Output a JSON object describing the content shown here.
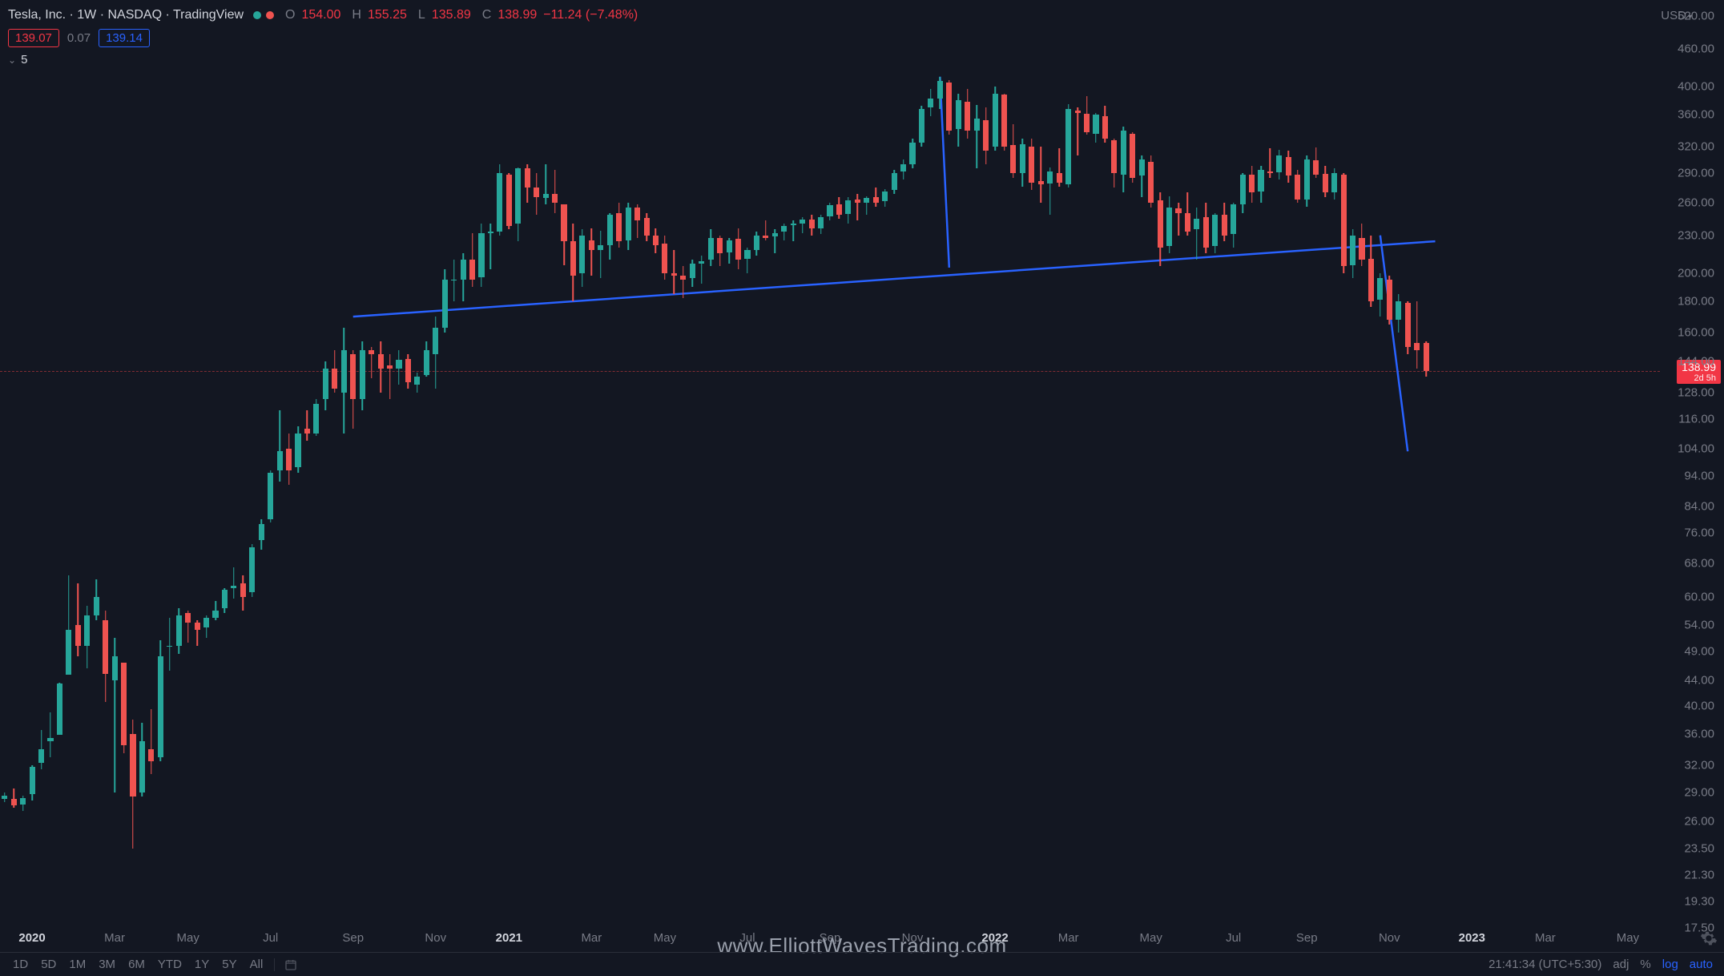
{
  "header": {
    "symbol_title": "Tesla, Inc. · 1W · NASDAQ · TradingView",
    "ohlc": {
      "O_lbl": "O",
      "O": "154.00",
      "H_lbl": "H",
      "H": "155.25",
      "L_lbl": "L",
      "L": "135.89",
      "C_lbl": "C",
      "C": "138.99",
      "chg": "−11.24 (−7.48%)"
    },
    "currency": "USD"
  },
  "row2": {
    "left_pill": "139.07",
    "mid": "0.07",
    "right_pill": "139.14"
  },
  "row3": {
    "indicator": "5"
  },
  "chart": {
    "type": "candlestick",
    "colors": {
      "up": "#26a69a",
      "down": "#ef5350",
      "bg": "#131722",
      "grid": "#2a2e39",
      "text": "#787b86",
      "trend": "#2962ff",
      "hline": "#802c33"
    },
    "y_scale": "log",
    "y_ticks": [
      520,
      460,
      400,
      360,
      320,
      290,
      260,
      230,
      200,
      180,
      160,
      144,
      128,
      116,
      104,
      94,
      84,
      76,
      68,
      60,
      54,
      49,
      44,
      40,
      36,
      32,
      29,
      26,
      23.5,
      21.3,
      19.3,
      17.5
    ],
    "y_tick_labels": [
      "520.00",
      "460.00",
      "400.00",
      "360.00",
      "320.00",
      "290.00",
      "260.00",
      "230.00",
      "200.00",
      "180.00",
      "160.00",
      "144.00",
      "128.00",
      "116.00",
      "104.00",
      "94.00",
      "84.00",
      "76.00",
      "68.00",
      "60.00",
      "54.00",
      "49.00",
      "44.00",
      "40.00",
      "36.00",
      "32.00",
      "29.00",
      "26.00",
      "23.50",
      "21.30",
      "19.30",
      "17.50"
    ],
    "price_tag": {
      "price": "138.99",
      "sub": "2d 5h"
    },
    "last_price_line": 138.99,
    "x_ticks": [
      {
        "i": 3,
        "label": "2020",
        "bold": true
      },
      {
        "i": 12,
        "label": "Mar"
      },
      {
        "i": 20,
        "label": "May"
      },
      {
        "i": 29,
        "label": "Jul"
      },
      {
        "i": 38,
        "label": "Sep"
      },
      {
        "i": 47,
        "label": "Nov"
      },
      {
        "i": 55,
        "label": "2021",
        "bold": true
      },
      {
        "i": 64,
        "label": "Mar"
      },
      {
        "i": 72,
        "label": "May"
      },
      {
        "i": 81,
        "label": "Jul"
      },
      {
        "i": 90,
        "label": "Sep"
      },
      {
        "i": 99,
        "label": "Nov"
      },
      {
        "i": 108,
        "label": "2022",
        "bold": true
      },
      {
        "i": 116,
        "label": "Mar"
      },
      {
        "i": 125,
        "label": "May"
      },
      {
        "i": 134,
        "label": "Jul"
      },
      {
        "i": 142,
        "label": "Sep"
      },
      {
        "i": 151,
        "label": "Nov"
      },
      {
        "i": 160,
        "label": "2023",
        "bold": true
      },
      {
        "i": 168,
        "label": "Mar"
      },
      {
        "i": 177,
        "label": "May"
      }
    ],
    "n_slots": 181,
    "candle_width_ratio": 0.62,
    "trend_lines": [
      {
        "x1_i": 38,
        "y1": 170,
        "x2_i": 156,
        "y2": 225
      },
      {
        "x1_i": 102,
        "y1": 415,
        "x2_i": 103,
        "y2": 204
      },
      {
        "x1_i": 150,
        "y1": 230,
        "x2_i": 153,
        "y2": 103
      }
    ],
    "candles": [
      {
        "o": 28.3,
        "h": 29.0,
        "l": 27.9,
        "c": 28.6
      },
      {
        "o": 28.3,
        "h": 29.4,
        "l": 27.4,
        "c": 27.6
      },
      {
        "o": 27.7,
        "h": 28.6,
        "l": 27.0,
        "c": 28.4
      },
      {
        "o": 28.8,
        "h": 32.0,
        "l": 28.1,
        "c": 31.9
      },
      {
        "o": 32.3,
        "h": 36.5,
        "l": 31.6,
        "c": 34.0
      },
      {
        "o": 35.0,
        "h": 39.0,
        "l": 33.0,
        "c": 35.5
      },
      {
        "o": 35.9,
        "h": 43.5,
        "l": 35.9,
        "c": 43.4
      },
      {
        "o": 44.9,
        "h": 65.0,
        "l": 44.9,
        "c": 53.0
      },
      {
        "o": 54.0,
        "h": 63.0,
        "l": 48.0,
        "c": 50.0
      },
      {
        "o": 50.0,
        "h": 58.0,
        "l": 46.0,
        "c": 56.0
      },
      {
        "o": 56.0,
        "h": 64.0,
        "l": 55.0,
        "c": 60.0
      },
      {
        "o": 55.0,
        "h": 57.0,
        "l": 40.5,
        "c": 45.0
      },
      {
        "o": 44.0,
        "h": 51.5,
        "l": 29.0,
        "c": 48.0
      },
      {
        "o": 47.0,
        "h": 47.0,
        "l": 33.5,
        "c": 34.5
      },
      {
        "o": 36.0,
        "h": 38.0,
        "l": 23.5,
        "c": 28.5
      },
      {
        "o": 29.0,
        "h": 37.5,
        "l": 28.5,
        "c": 35.0
      },
      {
        "o": 34.0,
        "h": 39.5,
        "l": 31.0,
        "c": 32.5
      },
      {
        "o": 33.0,
        "h": 51.0,
        "l": 32.5,
        "c": 48.0
      },
      {
        "o": 50.0,
        "h": 55.5,
        "l": 45.5,
        "c": 50.0
      },
      {
        "o": 50.0,
        "h": 57.5,
        "l": 48.5,
        "c": 56.0
      },
      {
        "o": 56.5,
        "h": 57.0,
        "l": 50.5,
        "c": 54.5
      },
      {
        "o": 54.5,
        "h": 55.0,
        "l": 50.0,
        "c": 53.0
      },
      {
        "o": 53.5,
        "h": 56.0,
        "l": 51.5,
        "c": 55.5
      },
      {
        "o": 55.5,
        "h": 59.0,
        "l": 55.0,
        "c": 57.0
      },
      {
        "o": 57.5,
        "h": 62.0,
        "l": 56.5,
        "c": 61.5
      },
      {
        "o": 62.0,
        "h": 67.0,
        "l": 59.5,
        "c": 62.5
      },
      {
        "o": 63.0,
        "h": 65.0,
        "l": 57.0,
        "c": 60.0
      },
      {
        "o": 61.0,
        "h": 73.0,
        "l": 60.0,
        "c": 72.0
      },
      {
        "o": 74.0,
        "h": 80.0,
        "l": 71.5,
        "c": 78.5
      },
      {
        "o": 80.0,
        "h": 96.0,
        "l": 79.0,
        "c": 95.0
      },
      {
        "o": 96.0,
        "h": 120.0,
        "l": 92.0,
        "c": 103.0
      },
      {
        "o": 104.0,
        "h": 110.0,
        "l": 91.0,
        "c": 96.0
      },
      {
        "o": 97.0,
        "h": 113.0,
        "l": 95.0,
        "c": 110.0
      },
      {
        "o": 112.0,
        "h": 120.0,
        "l": 107.0,
        "c": 110.0
      },
      {
        "o": 110.0,
        "h": 125.0,
        "l": 109.0,
        "c": 123.0
      },
      {
        "o": 125.0,
        "h": 144.0,
        "l": 120.0,
        "c": 140.0
      },
      {
        "o": 140.0,
        "h": 150.0,
        "l": 128.0,
        "c": 130.0
      },
      {
        "o": 128.0,
        "h": 163.0,
        "l": 110.0,
        "c": 150.0
      },
      {
        "o": 148.0,
        "h": 150.0,
        "l": 112.0,
        "c": 125.0
      },
      {
        "o": 125.0,
        "h": 155.0,
        "l": 120.0,
        "c": 150.0
      },
      {
        "o": 150.0,
        "h": 152.0,
        "l": 135.0,
        "c": 148.0
      },
      {
        "o": 148.0,
        "h": 155.0,
        "l": 128.0,
        "c": 140.0
      },
      {
        "o": 142.0,
        "h": 148.0,
        "l": 125.0,
        "c": 140.0
      },
      {
        "o": 140.0,
        "h": 150.0,
        "l": 132.0,
        "c": 145.0
      },
      {
        "o": 145.0,
        "h": 148.0,
        "l": 130.0,
        "c": 133.0
      },
      {
        "o": 132.0,
        "h": 138.0,
        "l": 128.0,
        "c": 136.0
      },
      {
        "o": 137.0,
        "h": 155.0,
        "l": 136.0,
        "c": 150.0
      },
      {
        "o": 148.0,
        "h": 170.0,
        "l": 130.0,
        "c": 163.0
      },
      {
        "o": 163.0,
        "h": 203.0,
        "l": 160.0,
        "c": 195.0
      },
      {
        "o": 195.0,
        "h": 210.0,
        "l": 180.0,
        "c": 195.0
      },
      {
        "o": 195.0,
        "h": 215.0,
        "l": 180.0,
        "c": 210.0
      },
      {
        "o": 210.0,
        "h": 232.0,
        "l": 190.0,
        "c": 195.0
      },
      {
        "o": 197.0,
        "h": 240.0,
        "l": 190.0,
        "c": 232.0
      },
      {
        "o": 232.0,
        "h": 240.0,
        "l": 203.0,
        "c": 233.0
      },
      {
        "o": 233.0,
        "h": 300.0,
        "l": 230.0,
        "c": 290.0
      },
      {
        "o": 288.0,
        "h": 290.0,
        "l": 235.0,
        "c": 238.0
      },
      {
        "o": 240.0,
        "h": 296.0,
        "l": 225.0,
        "c": 295.0
      },
      {
        "o": 295.0,
        "h": 300.0,
        "l": 260.0,
        "c": 275.0
      },
      {
        "o": 275.0,
        "h": 290.0,
        "l": 248.0,
        "c": 265.0
      },
      {
        "o": 264.0,
        "h": 300.0,
        "l": 258.0,
        "c": 268.0
      },
      {
        "o": 268.0,
        "h": 293.0,
        "l": 250.0,
        "c": 260.0
      },
      {
        "o": 258.0,
        "h": 258.0,
        "l": 206.0,
        "c": 225.0
      },
      {
        "o": 225.0,
        "h": 240.0,
        "l": 180.0,
        "c": 198.0
      },
      {
        "o": 200.0,
        "h": 235.0,
        "l": 190.0,
        "c": 230.0
      },
      {
        "o": 226.0,
        "h": 236.0,
        "l": 198.0,
        "c": 218.0
      },
      {
        "o": 218.0,
        "h": 234.0,
        "l": 196.0,
        "c": 222.0
      },
      {
        "o": 222.0,
        "h": 250.0,
        "l": 210.0,
        "c": 248.0
      },
      {
        "o": 250.0,
        "h": 260.0,
        "l": 220.0,
        "c": 225.0
      },
      {
        "o": 226.0,
        "h": 260.0,
        "l": 218.0,
        "c": 255.0
      },
      {
        "o": 255.0,
        "h": 258.0,
        "l": 228.0,
        "c": 243.0
      },
      {
        "o": 245.0,
        "h": 250.0,
        "l": 225.0,
        "c": 230.0
      },
      {
        "o": 230.0,
        "h": 236.0,
        "l": 215.0,
        "c": 222.0
      },
      {
        "o": 223.0,
        "h": 230.0,
        "l": 195.0,
        "c": 200.0
      },
      {
        "o": 200.0,
        "h": 218.0,
        "l": 185.0,
        "c": 198.0
      },
      {
        "o": 198.0,
        "h": 205.0,
        "l": 182.0,
        "c": 195.0
      },
      {
        "o": 196.0,
        "h": 210.0,
        "l": 190.0,
        "c": 207.0
      },
      {
        "o": 207.0,
        "h": 213.0,
        "l": 192.0,
        "c": 209.0
      },
      {
        "o": 210.0,
        "h": 235.0,
        "l": 205.0,
        "c": 228.0
      },
      {
        "o": 228.0,
        "h": 230.0,
        "l": 205.0,
        "c": 215.0
      },
      {
        "o": 216.0,
        "h": 228.0,
        "l": 207.0,
        "c": 226.0
      },
      {
        "o": 227.0,
        "h": 236.0,
        "l": 203.0,
        "c": 210.0
      },
      {
        "o": 211.0,
        "h": 220.0,
        "l": 200.0,
        "c": 218.0
      },
      {
        "o": 218.0,
        "h": 233.0,
        "l": 213.0,
        "c": 230.0
      },
      {
        "o": 230.0,
        "h": 243.0,
        "l": 226.0,
        "c": 228.0
      },
      {
        "o": 229.0,
        "h": 235.0,
        "l": 215.0,
        "c": 232.0
      },
      {
        "o": 233.0,
        "h": 240.0,
        "l": 226.0,
        "c": 238.0
      },
      {
        "o": 239.0,
        "h": 243.0,
        "l": 225.0,
        "c": 240.0
      },
      {
        "o": 240.0,
        "h": 246.0,
        "l": 232.0,
        "c": 244.0
      },
      {
        "o": 244.0,
        "h": 248.0,
        "l": 230.0,
        "c": 236.0
      },
      {
        "o": 236.0,
        "h": 248.0,
        "l": 231.0,
        "c": 246.0
      },
      {
        "o": 247.0,
        "h": 260.0,
        "l": 243.0,
        "c": 257.0
      },
      {
        "o": 258.0,
        "h": 265.0,
        "l": 245.0,
        "c": 248.0
      },
      {
        "o": 249.0,
        "h": 265.0,
        "l": 240.0,
        "c": 262.0
      },
      {
        "o": 263.0,
        "h": 268.0,
        "l": 243.0,
        "c": 260.0
      },
      {
        "o": 260.0,
        "h": 266.0,
        "l": 248.0,
        "c": 264.0
      },
      {
        "o": 265.0,
        "h": 275.0,
        "l": 256.0,
        "c": 260.0
      },
      {
        "o": 261.0,
        "h": 273.0,
        "l": 256.0,
        "c": 271.0
      },
      {
        "o": 272.0,
        "h": 293.0,
        "l": 268.0,
        "c": 290.0
      },
      {
        "o": 292.0,
        "h": 305.0,
        "l": 283.0,
        "c": 300.0
      },
      {
        "o": 300.0,
        "h": 330.0,
        "l": 295.0,
        "c": 325.0
      },
      {
        "o": 325.0,
        "h": 372.0,
        "l": 320.0,
        "c": 368.0
      },
      {
        "o": 370.0,
        "h": 396.0,
        "l": 358.0,
        "c": 382.0
      },
      {
        "o": 383.0,
        "h": 415.0,
        "l": 368.0,
        "c": 408.0
      },
      {
        "o": 406.0,
        "h": 410.0,
        "l": 335.0,
        "c": 340.0
      },
      {
        "o": 342.0,
        "h": 390.0,
        "l": 320.0,
        "c": 380.0
      },
      {
        "o": 378.0,
        "h": 396.0,
        "l": 330.0,
        "c": 340.0
      },
      {
        "o": 340.0,
        "h": 373.0,
        "l": 295.0,
        "c": 355.0
      },
      {
        "o": 353.0,
        "h": 370.0,
        "l": 300.0,
        "c": 315.0
      },
      {
        "o": 320.0,
        "h": 400.0,
        "l": 315.0,
        "c": 390.0
      },
      {
        "o": 388.0,
        "h": 390.0,
        "l": 315.0,
        "c": 320.0
      },
      {
        "o": 322.0,
        "h": 348.0,
        "l": 285.0,
        "c": 290.0
      },
      {
        "o": 290.0,
        "h": 330.0,
        "l": 276.0,
        "c": 323.0
      },
      {
        "o": 320.0,
        "h": 330.0,
        "l": 272.0,
        "c": 280.0
      },
      {
        "o": 281.0,
        "h": 320.0,
        "l": 260.0,
        "c": 278.0
      },
      {
        "o": 279.0,
        "h": 296.0,
        "l": 248.0,
        "c": 292.0
      },
      {
        "o": 290.0,
        "h": 318.0,
        "l": 276.0,
        "c": 280.0
      },
      {
        "o": 278.0,
        "h": 375.0,
        "l": 275.0,
        "c": 368.0
      },
      {
        "o": 366.0,
        "h": 370.0,
        "l": 310.0,
        "c": 363.0
      },
      {
        "o": 362.0,
        "h": 386.0,
        "l": 335.0,
        "c": 338.0
      },
      {
        "o": 336.0,
        "h": 363.0,
        "l": 325.0,
        "c": 360.0
      },
      {
        "o": 358.0,
        "h": 372.0,
        "l": 325.0,
        "c": 330.0
      },
      {
        "o": 328.0,
        "h": 330.0,
        "l": 275.0,
        "c": 290.0
      },
      {
        "o": 288.0,
        "h": 345.0,
        "l": 270.0,
        "c": 340.0
      },
      {
        "o": 336.0,
        "h": 338.0,
        "l": 280.0,
        "c": 285.0
      },
      {
        "o": 287.0,
        "h": 310.0,
        "l": 265.0,
        "c": 305.0
      },
      {
        "o": 302.0,
        "h": 310.0,
        "l": 255.0,
        "c": 260.0
      },
      {
        "o": 262.0,
        "h": 270.0,
        "l": 205.0,
        "c": 220.0
      },
      {
        "o": 221.0,
        "h": 266.0,
        "l": 215.0,
        "c": 255.0
      },
      {
        "o": 254.0,
        "h": 260.0,
        "l": 230.0,
        "c": 250.0
      },
      {
        "o": 250.0,
        "h": 270.0,
        "l": 230.0,
        "c": 233.0
      },
      {
        "o": 235.0,
        "h": 255.0,
        "l": 210.0,
        "c": 245.0
      },
      {
        "o": 246.0,
        "h": 260.0,
        "l": 215.0,
        "c": 220.0
      },
      {
        "o": 221.0,
        "h": 250.0,
        "l": 215.0,
        "c": 248.0
      },
      {
        "o": 248.0,
        "h": 260.0,
        "l": 225.0,
        "c": 230.0
      },
      {
        "o": 231.0,
        "h": 260.0,
        "l": 220.0,
        "c": 258.0
      },
      {
        "o": 258.0,
        "h": 290.0,
        "l": 250.0,
        "c": 288.0
      },
      {
        "o": 288.0,
        "h": 298.0,
        "l": 260.0,
        "c": 270.0
      },
      {
        "o": 271.0,
        "h": 298.0,
        "l": 260.0,
        "c": 293.0
      },
      {
        "o": 292.0,
        "h": 318.0,
        "l": 285.0,
        "c": 290.0
      },
      {
        "o": 291.0,
        "h": 316.0,
        "l": 283.0,
        "c": 310.0
      },
      {
        "o": 308.0,
        "h": 315.0,
        "l": 280.0,
        "c": 287.0
      },
      {
        "o": 288.0,
        "h": 293.0,
        "l": 260.0,
        "c": 263.0
      },
      {
        "o": 263.0,
        "h": 310.0,
        "l": 256.0,
        "c": 305.0
      },
      {
        "o": 304.0,
        "h": 319.0,
        "l": 285.0,
        "c": 288.0
      },
      {
        "o": 289.0,
        "h": 298.0,
        "l": 265.0,
        "c": 270.0
      },
      {
        "o": 270.0,
        "h": 295.0,
        "l": 263.0,
        "c": 290.0
      },
      {
        "o": 288.0,
        "h": 290.0,
        "l": 200.0,
        "c": 205.0
      },
      {
        "o": 206.0,
        "h": 235.0,
        "l": 196.0,
        "c": 230.0
      },
      {
        "o": 228.0,
        "h": 240.0,
        "l": 205.0,
        "c": 210.0
      },
      {
        "o": 211.0,
        "h": 230.0,
        "l": 176.0,
        "c": 180.0
      },
      {
        "o": 181.0,
        "h": 200.0,
        "l": 170.0,
        "c": 196.0
      },
      {
        "o": 195.0,
        "h": 198.0,
        "l": 165.0,
        "c": 168.0
      },
      {
        "o": 168.0,
        "h": 185.0,
        "l": 160.0,
        "c": 180.0
      },
      {
        "o": 179.0,
        "h": 180.0,
        "l": 148.0,
        "c": 152.0
      },
      {
        "o": 154.0,
        "h": 180.0,
        "l": 140.0,
        "c": 150.0
      },
      {
        "o": 154.0,
        "h": 155.25,
        "l": 135.89,
        "c": 138.99
      }
    ]
  },
  "footer": {
    "timeframes": [
      "1D",
      "5D",
      "1M",
      "3M",
      "6M",
      "YTD",
      "1Y",
      "5Y",
      "All"
    ],
    "clock": "21:41:34 (UTC+5:30)",
    "right_labels": {
      "adj": "adj",
      "pct": "%",
      "log": "log",
      "auto": "auto"
    }
  },
  "watermark": "www.ElliottWavesTrading.com"
}
